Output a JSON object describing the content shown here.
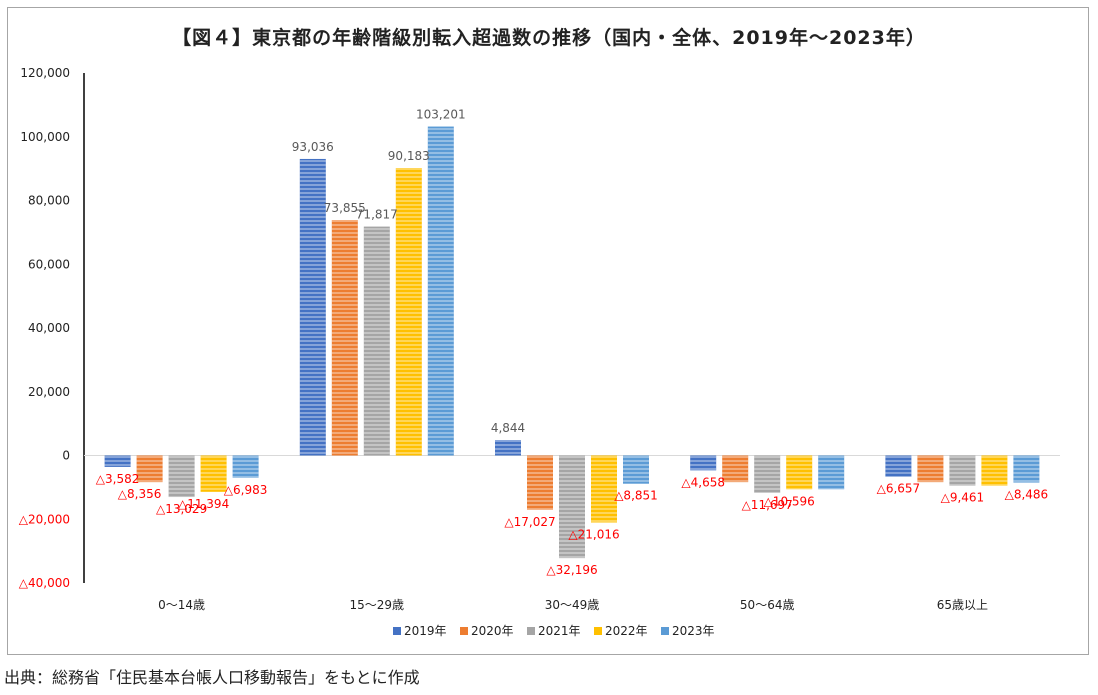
{
  "source": "出典：総務省「住民基本台帳人口移動報告」をもとに作成",
  "chart_data": {
    "type": "bar",
    "title": "【図４】東京都の年齢階級別転入超過数の推移（国内・全体、2019年～2023年）",
    "categories": [
      "0～14歳",
      "15～29歳",
      "30～49歳",
      "50～64歳",
      "65歳以上"
    ],
    "series": [
      {
        "name": "2019年",
        "color": "#4472c4",
        "values": [
          -3582,
          93036,
          4844,
          -4658,
          -6657
        ]
      },
      {
        "name": "2020年",
        "color": "#ed7d31",
        "values": [
          -8356,
          73855,
          -17027,
          -8356,
          -8356
        ]
      },
      {
        "name": "2021年",
        "color": "#a5a5a5",
        "values": [
          -13029,
          71817,
          -32196,
          -11697,
          -9461
        ]
      },
      {
        "name": "2022年",
        "color": "#ffc000",
        "values": [
          -11394,
          90183,
          -21016,
          -10596,
          -9461
        ]
      },
      {
        "name": "2023年",
        "color": "#5b9bd5",
        "values": [
          -6983,
          103201,
          -8851,
          -10596,
          -8486
        ]
      }
    ],
    "data_labels": [
      [
        "△3,582",
        "△8,356",
        "△13,029",
        "△11,394",
        "△6,983"
      ],
      [
        "93,036",
        "73,855",
        "71,817",
        "90,183",
        "103,201"
      ],
      [
        "4,844",
        "△17,027",
        "△32,196",
        "△21,016",
        "△8,851"
      ],
      [
        "△4,658",
        "",
        "△11,697",
        "△10,596",
        ""
      ],
      [
        "△6,657",
        "",
        "△9,461",
        "",
        "△8,486"
      ]
    ],
    "y_ticks": [
      120000,
      100000,
      80000,
      60000,
      40000,
      20000,
      0,
      -20000,
      -40000
    ],
    "y_tick_labels": [
      "120,000",
      "100,000",
      "80,000",
      "60,000",
      "40,000",
      "20,000",
      "0",
      "△20,000",
      "△40,000"
    ],
    "ylim": [
      -40000,
      120000
    ],
    "negative_label_color": "#ff0000",
    "positive_label_color": "#595959",
    "legend_position": "bottom"
  }
}
